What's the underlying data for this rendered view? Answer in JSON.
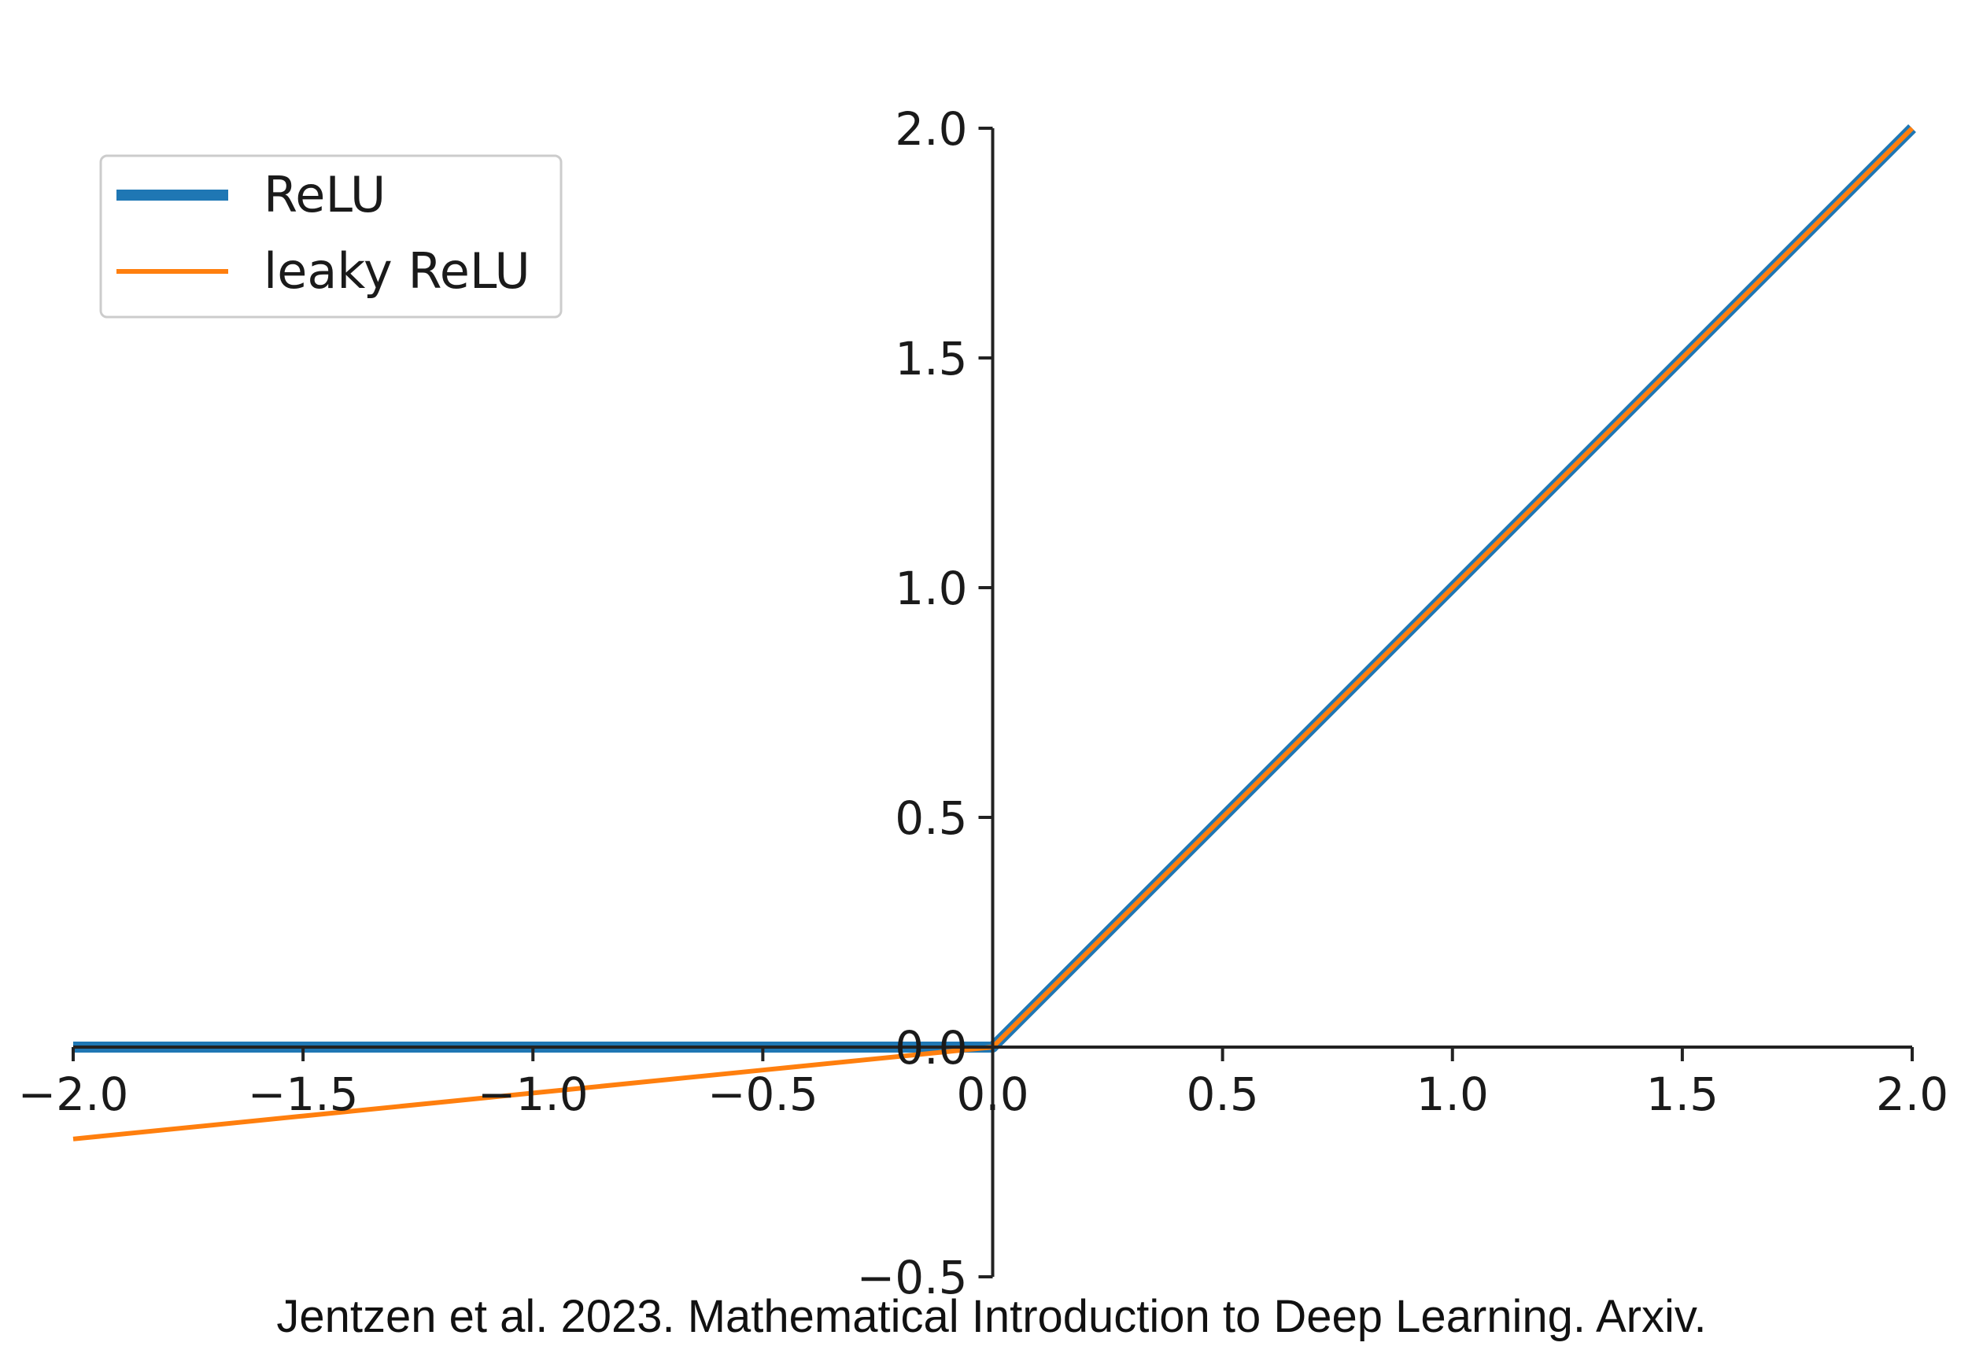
{
  "chart_data": {
    "type": "line",
    "xlim": [
      -2.0,
      2.0
    ],
    "ylim": [
      -0.5,
      2.0
    ],
    "x_ticks": [
      -2.0,
      -1.5,
      -1.0,
      -0.5,
      0.0,
      0.5,
      1.0,
      1.5,
      2.0
    ],
    "x_tick_labels": [
      "−2.0",
      "−1.5",
      "−1.0",
      "−0.5",
      "0.0",
      "0.5",
      "1.0",
      "1.5",
      "2.0"
    ],
    "y_ticks": [
      -0.5,
      0.0,
      0.5,
      1.0,
      1.5,
      2.0
    ],
    "y_tick_labels": [
      "−0.5",
      "0.0",
      "0.5",
      "1.0",
      "1.5",
      "2.0"
    ],
    "spines": "centered at origin (left and bottom)",
    "grid": false,
    "legend_position": "upper-left",
    "series": [
      {
        "name": "ReLU",
        "color": "#1f77b4",
        "x": [
          -2.0,
          -1.5,
          -1.0,
          -0.5,
          0.0,
          0.5,
          1.0,
          1.5,
          2.0
        ],
        "y": [
          0.0,
          0.0,
          0.0,
          0.0,
          0.0,
          0.5,
          1.0,
          1.5,
          2.0
        ]
      },
      {
        "name": "leaky ReLU",
        "color": "#ff7f0e",
        "x": [
          -2.0,
          -1.5,
          -1.0,
          -0.5,
          0.0,
          0.5,
          1.0,
          1.5,
          2.0
        ],
        "y": [
          -0.2,
          -0.15,
          -0.1,
          -0.05,
          0.0,
          0.5,
          1.0,
          1.5,
          2.0
        ]
      }
    ]
  },
  "caption": "Jentzen et al. 2023. Mathematical Introduction to Deep Learning. Arxiv."
}
